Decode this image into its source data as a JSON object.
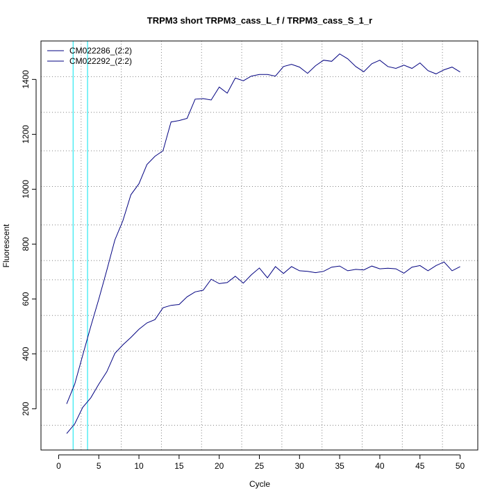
{
  "chart_data": {
    "type": "line",
    "title": "TRPM3 short TRPM3_cass_L_f / TRPM3_cass_S_1_r",
    "xlabel": "Cycle",
    "ylabel": "Fluorescent",
    "xlim": [
      -2.2,
      52.2
    ],
    "ylim": [
      50,
      1540
    ],
    "xticks": [
      0,
      5,
      10,
      15,
      20,
      25,
      30,
      35,
      40,
      45,
      50
    ],
    "yticks": [
      200,
      400,
      600,
      800,
      1000,
      1200,
      1400
    ],
    "grid": true,
    "grid_x": [
      2.8,
      7.8,
      12.8,
      17.8,
      22.8,
      27.8,
      32.8,
      37.8,
      42.8,
      47.8,
      52.8
    ],
    "grid_y": [
      140,
      270,
      410,
      540,
      670,
      740,
      870,
      1010,
      1140,
      1280,
      1410,
      1540
    ],
    "vertical_lines": [
      1.8,
      3.6
    ],
    "vertical_line_color": "#00e5ee",
    "line_color": "#000080",
    "legend_position": "top-left",
    "x": [
      1,
      2,
      3,
      4,
      5,
      6,
      7,
      8,
      9,
      10,
      11,
      12,
      13,
      14,
      15,
      16,
      17,
      18,
      19,
      20,
      21,
      22,
      23,
      24,
      25,
      26,
      27,
      28,
      29,
      30,
      31,
      32,
      33,
      34,
      35,
      36,
      37,
      38,
      39,
      40,
      41,
      42,
      43,
      44,
      45,
      46,
      47,
      48,
      49,
      50
    ],
    "series": [
      {
        "name": "CM022286_(2:2)",
        "values": [
          218,
          290,
          395,
          500,
          600,
          705,
          815,
          885,
          980,
          1020,
          1090,
          1120,
          1140,
          1245,
          1250,
          1258,
          1328,
          1330,
          1325,
          1372,
          1350,
          1405,
          1395,
          1412,
          1418,
          1418,
          1412,
          1447,
          1455,
          1445,
          1422,
          1450,
          1470,
          1466,
          1493,
          1475,
          1447,
          1428,
          1457,
          1470,
          1447,
          1440,
          1452,
          1440,
          1460,
          1432,
          1420,
          1435,
          1445,
          1427
        ]
      },
      {
        "name": "CM022292_(2:2)",
        "values": [
          110,
          145,
          205,
          240,
          290,
          335,
          402,
          433,
          460,
          490,
          513,
          525,
          568,
          577,
          580,
          608,
          626,
          632,
          672,
          656,
          660,
          683,
          658,
          688,
          713,
          677,
          718,
          693,
          718,
          703,
          701,
          696,
          701,
          716,
          720,
          703,
          708,
          706,
          720,
          710,
          712,
          710,
          694,
          716,
          722,
          703,
          722,
          735,
          703,
          718
        ]
      }
    ]
  }
}
